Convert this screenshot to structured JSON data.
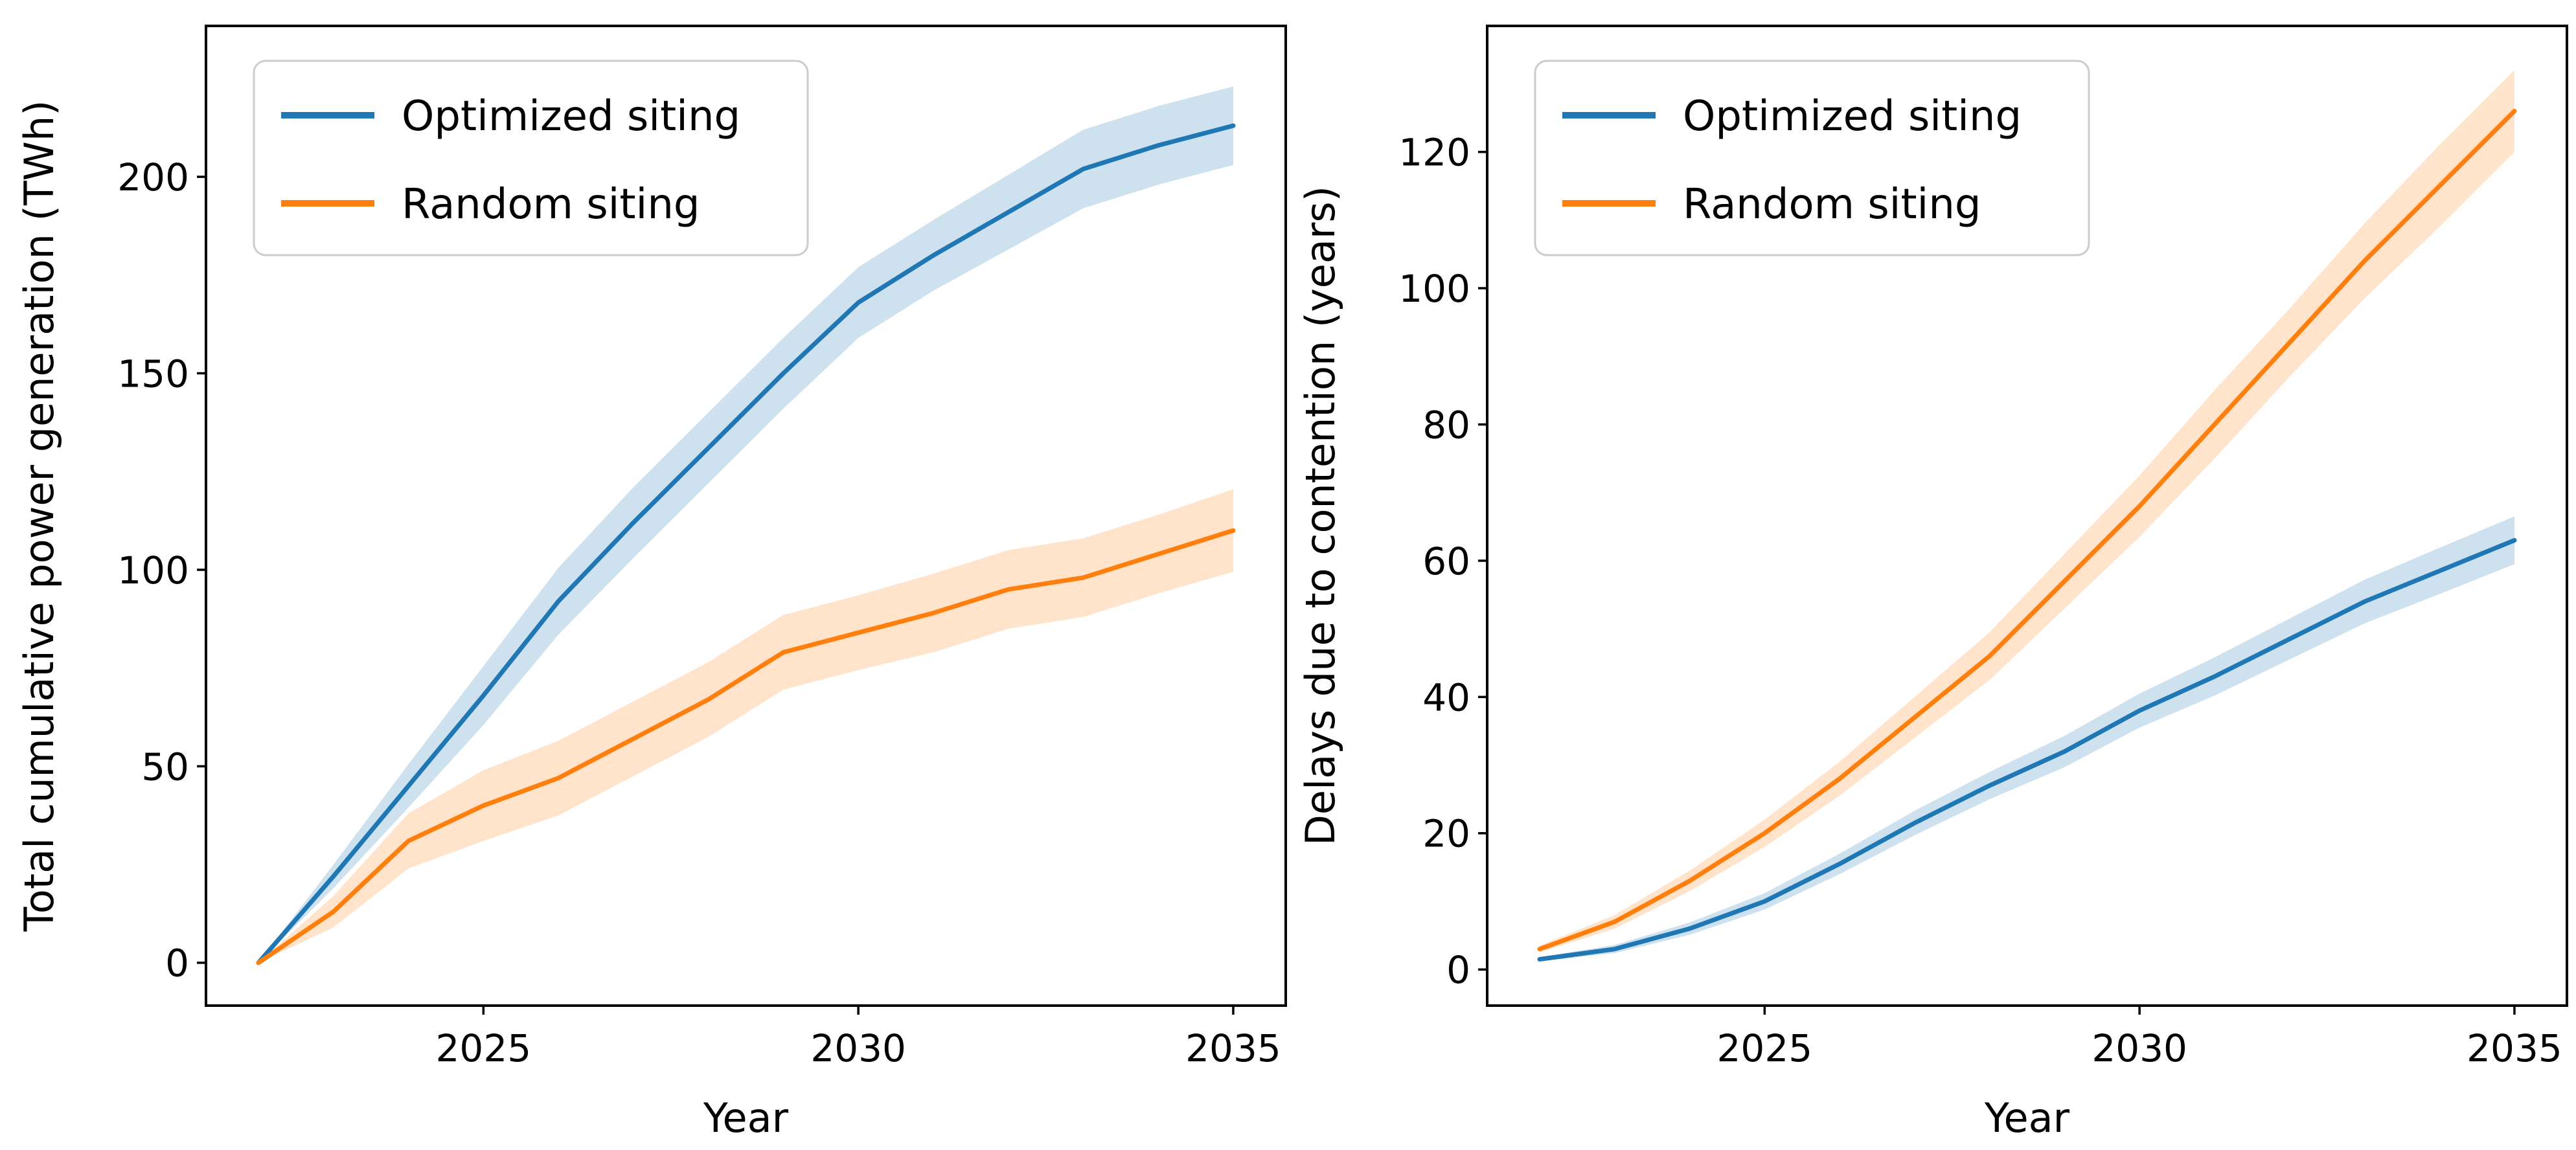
{
  "figure": {
    "background": "#ffffff"
  },
  "colors": {
    "optimized": "#1f77b4",
    "random": "#ff7f0e",
    "band_opacity": 0.22,
    "axis": "#000000",
    "legend_border": "#cccccc",
    "legend_background": "#ffffff"
  },
  "chart_data": [
    {
      "type": "line",
      "title": "",
      "xlabel": "Year",
      "ylabel": "Total cumulative power generation (TWh)",
      "x": [
        2022,
        2023,
        2024,
        2025,
        2026,
        2027,
        2028,
        2029,
        2030,
        2031,
        2032,
        2033,
        2034,
        2035
      ],
      "xticks": [
        2025,
        2030,
        2035
      ],
      "yticks": [
        0,
        50,
        100,
        150,
        200
      ],
      "xlim": [
        2021.3,
        2035.7
      ],
      "ylim": [
        -10.9,
        238.4
      ],
      "grid": false,
      "legend_position": "upper left",
      "series": [
        {
          "name": "Optimized siting",
          "color": "#1f77b4",
          "values": [
            0,
            22,
            45,
            68,
            92,
            112,
            131,
            150,
            168,
            180,
            191,
            202,
            208,
            213
          ],
          "band_lower": [
            0,
            19,
            39.5,
            60.5,
            83.5,
            103,
            122,
            141,
            159,
            171,
            181.5,
            192,
            198,
            203
          ],
          "band_upper": [
            0,
            25,
            50.5,
            75.5,
            100.5,
            121,
            140,
            159,
            177,
            189,
            200.5,
            212,
            218,
            223
          ]
        },
        {
          "name": "Random siting",
          "color": "#ff7f0e",
          "values": [
            0,
            13,
            31,
            40,
            47,
            57,
            67,
            79,
            84,
            89,
            95,
            98,
            104,
            110
          ],
          "band_lower": [
            0,
            9,
            24,
            31,
            37.5,
            47.5,
            57.5,
            69.5,
            74.5,
            79,
            85,
            88,
            94,
            99.5
          ],
          "band_upper": [
            0,
            17,
            38,
            49,
            56.5,
            66.5,
            76.5,
            88.5,
            93.5,
            99,
            105,
            108,
            114,
            120.5
          ]
        }
      ]
    },
    {
      "type": "line",
      "title": "",
      "xlabel": "Year",
      "ylabel": "Delays due to contention (years)",
      "x": [
        2022,
        2023,
        2024,
        2025,
        2026,
        2027,
        2028,
        2029,
        2030,
        2031,
        2032,
        2033,
        2034,
        2035
      ],
      "xticks": [
        2025,
        2030,
        2035
      ],
      "yticks": [
        0,
        20,
        40,
        60,
        80,
        100,
        120
      ],
      "xlim": [
        2021.3,
        2035.7
      ],
      "ylim": [
        -5.3,
        138.5
      ],
      "grid": false,
      "legend_position": "upper left",
      "series": [
        {
          "name": "Optimized siting",
          "color": "#1f77b4",
          "values": [
            1.5,
            3,
            6,
            10,
            15.5,
            21.5,
            27,
            32,
            38,
            43,
            48.5,
            54,
            58.5,
            63
          ],
          "band_lower": [
            1.2,
            2.4,
            5.1,
            8.8,
            14,
            19.7,
            25,
            29.7,
            35.5,
            40.2,
            45.5,
            50.8,
            55.1,
            59.5
          ],
          "band_upper": [
            1.8,
            3.6,
            6.9,
            11.2,
            17,
            23.3,
            29,
            34.3,
            40.5,
            45.8,
            51.5,
            57.2,
            61.9,
            66.5
          ]
        },
        {
          "name": "Random siting",
          "color": "#ff7f0e",
          "values": [
            3,
            7,
            13,
            20,
            28,
            37,
            46,
            57,
            68,
            80,
            92,
            104,
            115,
            126
          ],
          "band_lower": [
            2.5,
            6,
            11.5,
            18,
            25.5,
            34,
            42.5,
            53,
            63.5,
            75,
            87,
            98.5,
            109,
            120
          ],
          "band_upper": [
            3.5,
            8,
            14.5,
            22,
            30.5,
            40,
            49.5,
            61,
            72.5,
            85,
            97,
            109.5,
            121,
            132
          ]
        }
      ]
    }
  ]
}
